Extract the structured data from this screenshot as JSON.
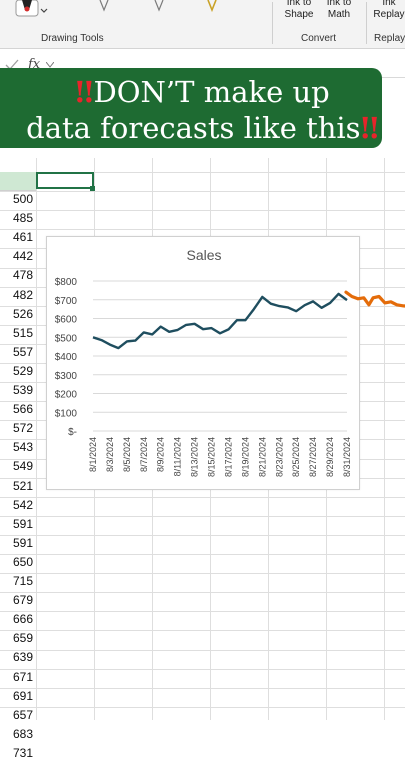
{
  "ribbon": {
    "group_drawing_tools": "Drawing Tools",
    "group_convert": "Convert",
    "group_replay": "Replay",
    "ink_to_shape_line1": "Ink to",
    "ink_to_shape_line2": "Shape",
    "ink_to_math_line1": "Ink to",
    "ink_to_math_line2": "Math",
    "ink_replay_line1": "Ink",
    "ink_replay_line2": "Replay"
  },
  "formula_bar": {
    "fx_label": "fx"
  },
  "banner": {
    "line1": "DON’T make up",
    "line2": "data forecasts like this",
    "mark": "‼",
    "accent_color": "#1e6b32"
  },
  "sheet": {
    "values": [
      "500",
      "485",
      "461",
      "442",
      "478",
      "482",
      "526",
      "515",
      "557",
      "529",
      "539",
      "566",
      "572",
      "543",
      "549",
      "521",
      "542",
      "591",
      "591",
      "650",
      "715",
      "679",
      "666",
      "659",
      "639",
      "671",
      "691",
      "657",
      "683",
      "731"
    ]
  },
  "chart_data": {
    "type": "line",
    "title": "Sales",
    "x": [
      "8/1/2024",
      "8/2/2024",
      "8/3/2024",
      "8/4/2024",
      "8/5/2024",
      "8/6/2024",
      "8/7/2024",
      "8/8/2024",
      "8/9/2024",
      "8/10/2024",
      "8/11/2024",
      "8/12/2024",
      "8/13/2024",
      "8/14/2024",
      "8/15/2024",
      "8/16/2024",
      "8/17/2024",
      "8/18/2024",
      "8/19/2024",
      "8/20/2024",
      "8/21/2024",
      "8/22/2024",
      "8/23/2024",
      "8/24/2024",
      "8/25/2024",
      "8/26/2024",
      "8/27/2024",
      "8/28/2024",
      "8/29/2024",
      "8/30/2024",
      "8/31/2024"
    ],
    "x_tick_labels": [
      "8/1/2024",
      "8/3/2024",
      "8/5/2024",
      "8/7/2024",
      "8/9/2024",
      "8/11/2024",
      "8/13/2024",
      "8/15/2024",
      "8/17/2024",
      "8/19/2024",
      "8/21/2024",
      "8/23/2024",
      "8/25/2024",
      "8/27/2024",
      "8/29/2024",
      "8/31/2024"
    ],
    "series": [
      {
        "values": [
          500,
          485,
          461,
          442,
          478,
          482,
          526,
          515,
          557,
          529,
          539,
          566,
          572,
          543,
          549,
          521,
          542,
          591,
          591,
          650,
          715,
          679,
          666,
          659,
          639,
          671,
          691,
          657,
          683,
          731,
          698
        ],
        "color": "#1f4e5f"
      }
    ],
    "y_tick_labels": [
      "$-",
      "$100",
      "$200",
      "$300",
      "$400",
      "$500",
      "$600",
      "$700",
      "$800"
    ],
    "ylim": [
      0,
      800
    ],
    "grid": true,
    "hand_drawn_forecast": {
      "x": [
        30,
        30.7,
        31.4,
        32.1,
        32.7,
        33.2,
        33.9,
        34.6,
        35.3,
        36.0,
        36.8,
        37.8
      ],
      "values": [
        735,
        712,
        700,
        705,
        668,
        705,
        712,
        678,
        684,
        668,
        662,
        660
      ],
      "color": "#e46c0a"
    }
  }
}
